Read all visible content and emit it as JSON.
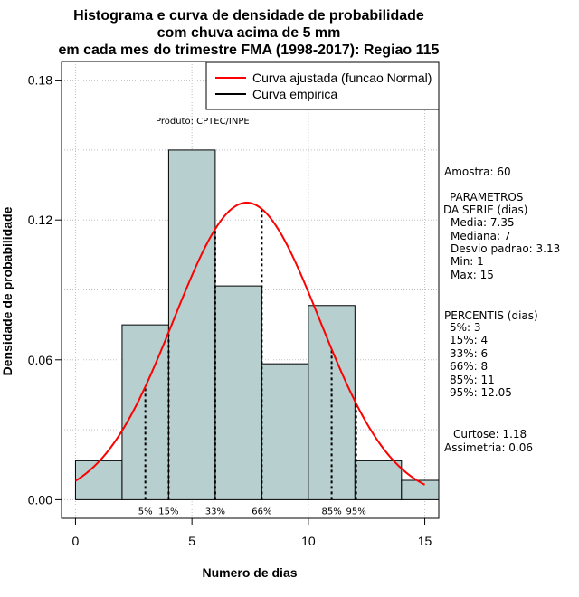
{
  "chart_data": {
    "type": "bar",
    "title": [
      "Histograma e curva de densidade de probabilidade",
      "com chuva acima de 5 mm",
      "em cada mes do trimestre FMA (1998-2017): Regiao 115"
    ],
    "xlabel": "Numero de dias",
    "ylabel": "Densidade de probabilidade",
    "xlim": [
      -0.6,
      15.6
    ],
    "ylim": [
      -0.008,
      0.188
    ],
    "x_ticks": [
      0,
      5,
      10,
      15
    ],
    "x_tick_labels": [
      "0",
      "5",
      "10",
      "15"
    ],
    "y_ticks": [
      0.0,
      0.06,
      0.12,
      0.18
    ],
    "y_tick_labels": [
      "0.00",
      "0.06",
      "0.12",
      "0.18"
    ],
    "grid": true,
    "legend_position": "top-right",
    "bins": [
      {
        "start": 0,
        "end": 2,
        "density": 0.0167
      },
      {
        "start": 2,
        "end": 4,
        "density": 0.075
      },
      {
        "start": 4,
        "end": 6,
        "density": 0.15
      },
      {
        "start": 6,
        "end": 8,
        "density": 0.0917
      },
      {
        "start": 8,
        "end": 10,
        "density": 0.0583
      },
      {
        "start": 10,
        "end": 12,
        "density": 0.0833
      },
      {
        "start": 12,
        "end": 14,
        "density": 0.0167
      },
      {
        "start": 14,
        "end": 16,
        "density": 0.0083
      }
    ],
    "fitted_curve": {
      "name": "Curva ajustada (funcao Normal)",
      "distribution": "normal",
      "mean": 7.35,
      "sd": 3.13,
      "x_range": [
        0,
        15
      ],
      "color": "#ff0000"
    },
    "empirical_curve": {
      "name": "Curva empirica",
      "color": "#000000"
    },
    "bar_fill": "#b8cfcf",
    "percentile_markers": [
      {
        "label": "5%",
        "x": 3
      },
      {
        "label": "15%",
        "x": 4
      },
      {
        "label": "33%",
        "x": 6
      },
      {
        "label": "66%",
        "x": 8
      },
      {
        "label": "85%",
        "x": 11
      },
      {
        "label": "95%",
        "x": 12.05
      }
    ]
  },
  "product_note": "Produto: CPTEC/INPE",
  "stats": {
    "sample": "Amostra: 60",
    "params_header_1": "PARAMETROS",
    "params_header_2": "DA SERIE (dias)",
    "params": [
      "Media: 7.35",
      "Mediana: 7",
      "Desvio padrao: 3.13",
      "Min: 1",
      "Max: 15"
    ],
    "percentis_header": "PERCENTIS (dias)",
    "percentis": [
      "5%: 3",
      "15%: 4",
      "33%: 6",
      "66%: 8",
      "85%: 11",
      "95%: 12.05"
    ],
    "kurtosis": "Curtose: 1.18",
    "skewness": "Assimetria: 0.06"
  }
}
